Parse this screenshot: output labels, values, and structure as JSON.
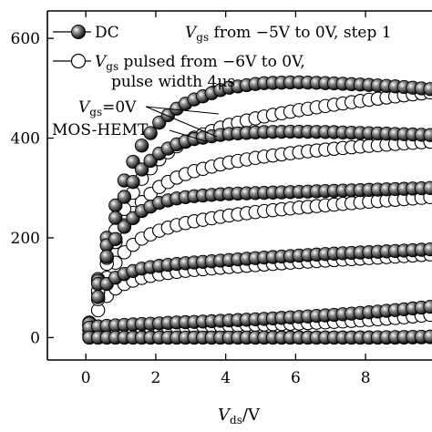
{
  "chart_data": {
    "type": "scatter",
    "xlabel_main": "V",
    "xlabel_sub": "ds",
    "xlabel_unit": "/V",
    "xlim": [
      -1.1,
      9.9
    ],
    "ylim": [
      -45,
      655
    ],
    "xticks": [
      0,
      2,
      4,
      6,
      8
    ],
    "yticks": [
      0,
      200,
      400,
      600
    ],
    "legend": {
      "dc_label": "DC",
      "pulsed_prefix": "V",
      "pulsed_sub": "gs",
      "pulsed_rest": " pulsed from −6V to 0V,",
      "pulsed_line2": "pulse width 4μs",
      "header_prefix": "V",
      "header_sub": "gs",
      "header_rest": " from −5V to 0V, step 1"
    },
    "annotations": {
      "vgs_prefix": "V",
      "vgs_sub": "gs",
      "vgs_rest": "=0V",
      "device": "MOS-HEMT"
    },
    "series": [
      {
        "name": "DC",
        "style": "filled",
        "vgs": 0,
        "x": [
          0.1,
          0.3,
          0.5,
          0.7,
          1,
          1.5,
          2,
          2.5,
          3,
          4,
          5,
          6,
          7,
          8,
          9,
          9.9
        ],
        "y": [
          30,
          100,
          170,
          230,
          300,
          375,
          425,
          455,
          475,
          500,
          510,
          512,
          510,
          507,
          503,
          498
        ]
      },
      {
        "name": "DC",
        "style": "filled",
        "vgs": -1,
        "x": [
          0.1,
          0.3,
          0.5,
          0.7,
          1,
          1.5,
          2,
          2.5,
          3,
          4,
          5,
          6,
          7,
          8,
          9,
          9.9
        ],
        "y": [
          30,
          98,
          160,
          210,
          270,
          330,
          365,
          385,
          397,
          408,
          412,
          413,
          412,
          410,
          408,
          406
        ]
      },
      {
        "name": "DC",
        "style": "filled",
        "vgs": -2,
        "x": [
          0.1,
          0.3,
          0.5,
          0.7,
          1,
          1.5,
          2,
          2.5,
          3,
          4,
          5,
          6,
          7,
          8,
          9,
          9.9
        ],
        "y": [
          30,
          95,
          145,
          180,
          215,
          250,
          268,
          278,
          283,
          288,
          290,
          292,
          294,
          296,
          298,
          300
        ]
      },
      {
        "name": "DC",
        "style": "filled",
        "vgs": -3,
        "x": [
          0.1,
          0.3,
          0.5,
          0.7,
          1,
          1.5,
          2,
          2.5,
          3,
          4,
          5,
          6,
          7,
          8,
          9,
          9.9
        ],
        "y": [
          28,
          75,
          100,
          115,
          125,
          137,
          143,
          147,
          150,
          155,
          160,
          164,
          168,
          171,
          174,
          177
        ]
      },
      {
        "name": "DC",
        "style": "filled",
        "vgs": -4,
        "x": [
          0.1,
          0.3,
          0.5,
          0.7,
          1,
          1.5,
          2,
          2.5,
          3,
          4,
          5,
          6,
          7,
          8,
          9,
          9.9
        ],
        "y": [
          20,
          22,
          23,
          24,
          25,
          27,
          28,
          30,
          31,
          34,
          37,
          41,
          45,
          50,
          56,
          62
        ]
      },
      {
        "name": "DC",
        "style": "filled",
        "vgs": -5,
        "x": [
          0.1,
          0.3,
          0.5,
          0.7,
          1,
          1.5,
          2,
          2.5,
          3,
          4,
          5,
          6,
          7,
          8,
          9,
          9.9
        ],
        "y": [
          0,
          0,
          0,
          0,
          0,
          0,
          0,
          0,
          0,
          0,
          0,
          0,
          0,
          0,
          1,
          2
        ]
      },
      {
        "name": "Pulsed",
        "style": "open",
        "vgs": 0,
        "x": [
          0.1,
          0.3,
          0.5,
          0.7,
          1,
          1.5,
          2,
          2.5,
          3,
          4,
          5,
          6,
          7,
          8,
          9,
          9.9
        ],
        "y": [
          25,
          80,
          135,
          185,
          245,
          310,
          352,
          380,
          398,
          425,
          442,
          455,
          466,
          476,
          485,
          492
        ]
      },
      {
        "name": "Pulsed",
        "style": "open",
        "vgs": -1,
        "x": [
          0.1,
          0.3,
          0.5,
          0.7,
          1,
          1.5,
          2,
          2.5,
          3,
          4,
          5,
          6,
          7,
          8,
          9,
          9.9
        ],
        "y": [
          25,
          78,
          128,
          168,
          215,
          265,
          298,
          318,
          332,
          350,
          362,
          371,
          378,
          384,
          389,
          393
        ]
      },
      {
        "name": "Pulsed",
        "style": "open",
        "vgs": -2,
        "x": [
          0.1,
          0.3,
          0.5,
          0.7,
          1,
          1.5,
          2,
          2.5,
          3,
          4,
          5,
          6,
          7,
          8,
          9,
          9.9
        ],
        "y": [
          22,
          68,
          105,
          135,
          165,
          195,
          212,
          224,
          232,
          244,
          253,
          260,
          266,
          272,
          277,
          282
        ]
      },
      {
        "name": "Pulsed",
        "style": "open",
        "vgs": -3,
        "x": [
          0.1,
          0.3,
          0.5,
          0.7,
          1,
          1.5,
          2,
          2.5,
          3,
          4,
          5,
          6,
          7,
          8,
          9,
          9.9
        ],
        "y": [
          15,
          48,
          75,
          92,
          105,
          118,
          126,
          131,
          135,
          141,
          146,
          151,
          155,
          159,
          163,
          167
        ]
      },
      {
        "name": "Pulsed",
        "style": "open",
        "vgs": -4,
        "x": [
          0.1,
          0.3,
          0.5,
          0.7,
          1,
          1.5,
          2,
          2.5,
          3,
          4,
          5,
          6,
          7,
          8,
          9,
          9.9
        ],
        "y": [
          5,
          13,
          16,
          17,
          18,
          19,
          20,
          21,
          22,
          24,
          26,
          28,
          31,
          35,
          40,
          46
        ]
      },
      {
        "name": "Pulsed",
        "style": "open",
        "vgs": -5,
        "x": [
          0.1,
          0.3,
          0.5,
          0.7,
          1,
          1.5,
          2,
          2.5,
          3,
          4,
          5,
          6,
          7,
          8,
          9,
          9.9
        ],
        "y": [
          0,
          0,
          0,
          0,
          0,
          0,
          0,
          0,
          0,
          0,
          0,
          0,
          0,
          0,
          0,
          1
        ]
      }
    ]
  }
}
